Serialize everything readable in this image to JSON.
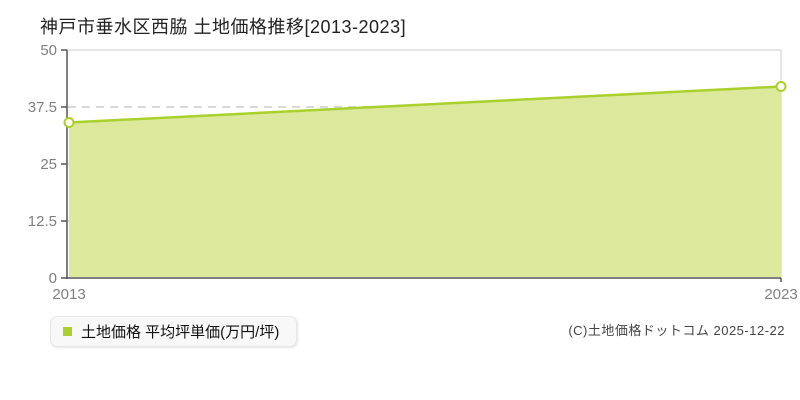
{
  "chart_data": {
    "type": "area",
    "title": "神戸市垂水区西脇 土地価格推移[2013-2023]",
    "x": [
      2013,
      2023
    ],
    "xtick_labels": [
      "2013",
      "2023"
    ],
    "series": [
      {
        "name": "土地価格 平均坪単価(万円/坪)",
        "values": [
          34.1,
          42.0
        ]
      }
    ],
    "xlabel": "",
    "ylabel": "",
    "unit": "万円/坪",
    "ylim": [
      0,
      50
    ],
    "yticks": [
      0,
      12.5,
      25,
      37.5,
      50
    ],
    "grid": "horizontal-dashed",
    "legend_position": "below-plot-left"
  },
  "footer": {
    "copyright": "(C)土地価格ドットコム 2025-12-22"
  },
  "colors": {
    "line": "#a9d02c",
    "fill": "#dce89c",
    "marker_fill": "#ffffff",
    "axis": "#555555",
    "grid": "#d9d9d9",
    "plot_border": "#cccccc",
    "tick_label": "#808080",
    "title_text": "#222222",
    "legend_text": "#111111",
    "copyright_text": "#444444",
    "legend_bg": "#f8f8f8",
    "background": "#ffffff"
  }
}
